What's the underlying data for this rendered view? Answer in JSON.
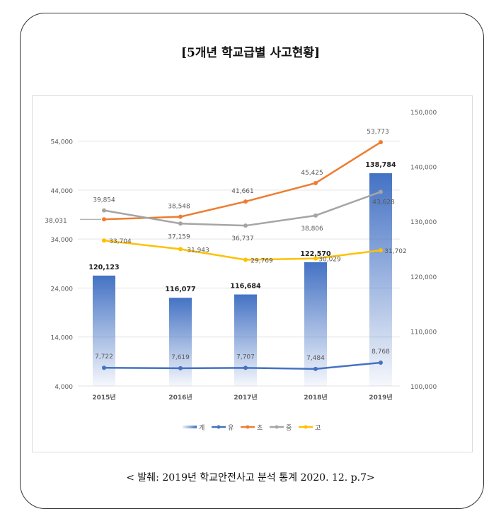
{
  "title": "[5개년 학교급별 사고현황]",
  "footer": "< 발췌: 2019년 학교안전사고 분석 통계 2020. 12. p.7>",
  "chart_data": {
    "type": "bar+line",
    "categories": [
      "2015년",
      "2016년",
      "2017년",
      "2018년",
      "2019년"
    ],
    "left_axis": {
      "ylim": [
        4000,
        60000
      ],
      "ticks": [
        4000,
        14000,
        24000,
        34000,
        44000,
        54000
      ],
      "tick_labels": [
        "4,000",
        "14,000",
        "24,000",
        "34,000",
        "44,000",
        "54,000"
      ]
    },
    "right_axis": {
      "ylim": [
        100000,
        150000
      ],
      "ticks": [
        100000,
        110000,
        120000,
        130000,
        140000,
        150000
      ],
      "tick_labels": [
        "100,000",
        "110,000",
        "120,000",
        "130,000",
        "140,000",
        "150,000"
      ]
    },
    "grid": true,
    "legend_position": "bottom",
    "series": [
      {
        "name": "계",
        "type": "bar",
        "axis": "right",
        "color": "#4472c4",
        "values": [
          120123,
          116077,
          116684,
          122570,
          138784
        ],
        "labels": [
          "120,123",
          "116,077",
          "116,684",
          "122,570",
          "138,784"
        ]
      },
      {
        "name": "유",
        "type": "line",
        "axis": "left",
        "color": "#4472c4",
        "values": [
          7722,
          7619,
          7707,
          7484,
          8768
        ],
        "labels": [
          "7,722",
          "7,619",
          "7,707",
          "7,484",
          "8,768"
        ]
      },
      {
        "name": "초",
        "type": "line",
        "axis": "left",
        "color": "#ed7d31",
        "values": [
          38031,
          38548,
          41661,
          45425,
          53773
        ],
        "labels": [
          "38,031",
          "38,548",
          "41,661",
          "45,425",
          "53,773"
        ]
      },
      {
        "name": "중",
        "type": "line",
        "axis": "left",
        "color": "#a5a5a5",
        "values": [
          39854,
          37159,
          36737,
          38806,
          43628
        ],
        "labels": [
          "39,854",
          "37,159",
          "36,737",
          "38,806",
          "43,628"
        ]
      },
      {
        "name": "고",
        "type": "line",
        "axis": "left",
        "color": "#ffc000",
        "values": [
          33704,
          31943,
          29769,
          30029,
          31702
        ],
        "labels": [
          "33,704",
          "31,943",
          "29,769",
          "30,029",
          "31,702"
        ]
      }
    ]
  }
}
